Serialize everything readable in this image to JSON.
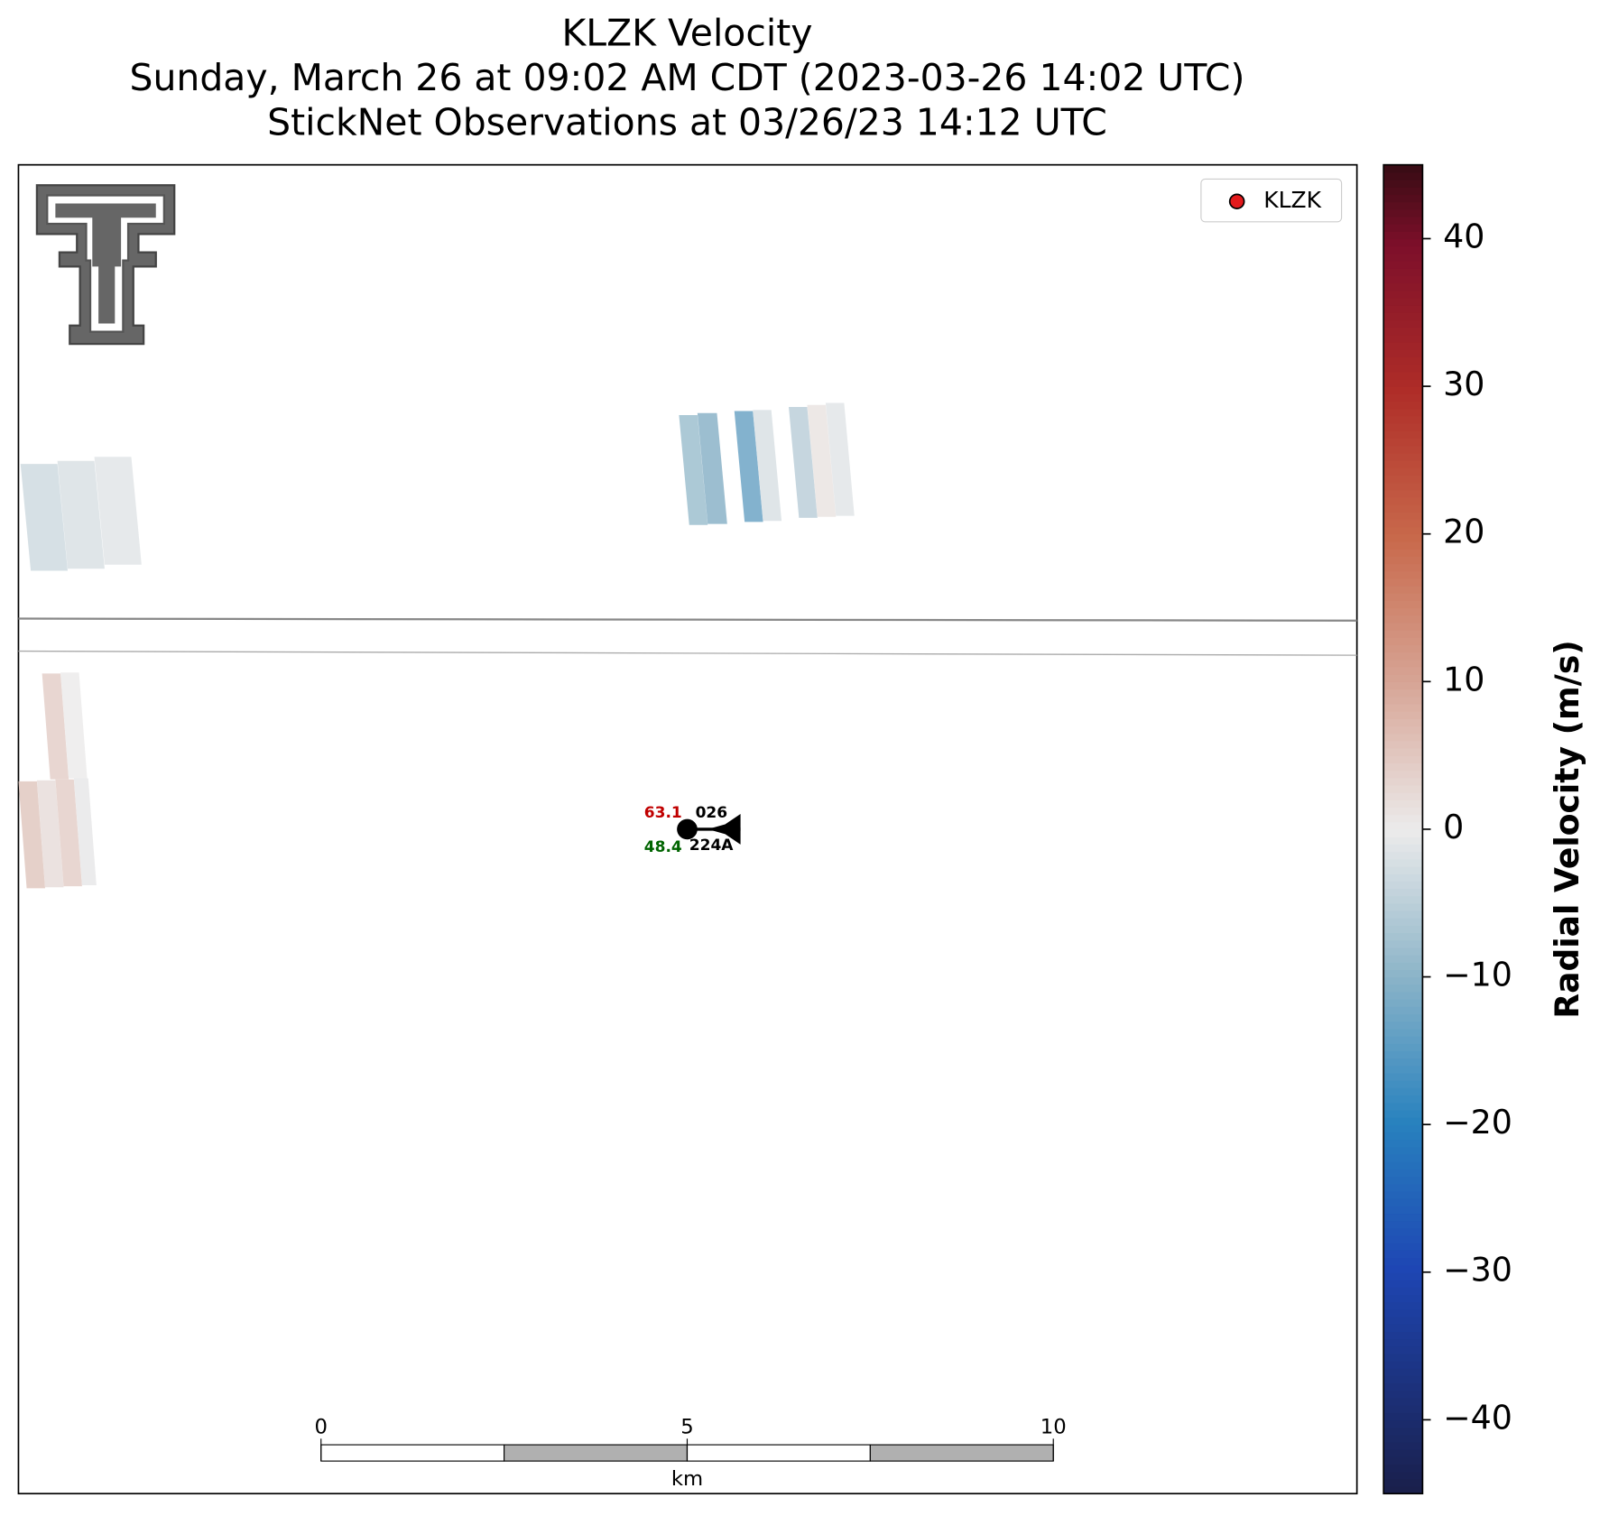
{
  "chart_data": {
    "type": "radar",
    "title": "KLZK Velocity",
    "subtitle": "Sunday, March 26 at 09:02 AM CDT (2023-03-26 14:02 UTC)",
    "subtitle2": "StickNet Observations at 03/26/23 14:12 UTC",
    "legend": [
      "KLZK"
    ],
    "gates": [
      -8,
      -10,
      -13,
      -2,
      -5,
      1,
      -1,
      -3,
      -2,
      -1,
      4,
      0,
      5,
      2,
      4,
      -0.5
    ],
    "colorbar": {
      "label": "Radial Velocity (m/s)",
      "lim": [
        -45,
        45
      ],
      "ticks": [
        {
          "value": -40,
          "label": "−40"
        },
        {
          "value": -30,
          "label": "−30"
        },
        {
          "value": -20,
          "label": "−20"
        },
        {
          "value": -10,
          "label": "−10"
        },
        0,
        10,
        20,
        30,
        40
      ]
    },
    "scale_bar": {
      "ticks": [
        0,
        5,
        10
      ],
      "label": "km"
    },
    "station": {
      "temperature": 63.1,
      "dewpoint": 48.4,
      "pressure": "026",
      "id": "224A"
    }
  }
}
